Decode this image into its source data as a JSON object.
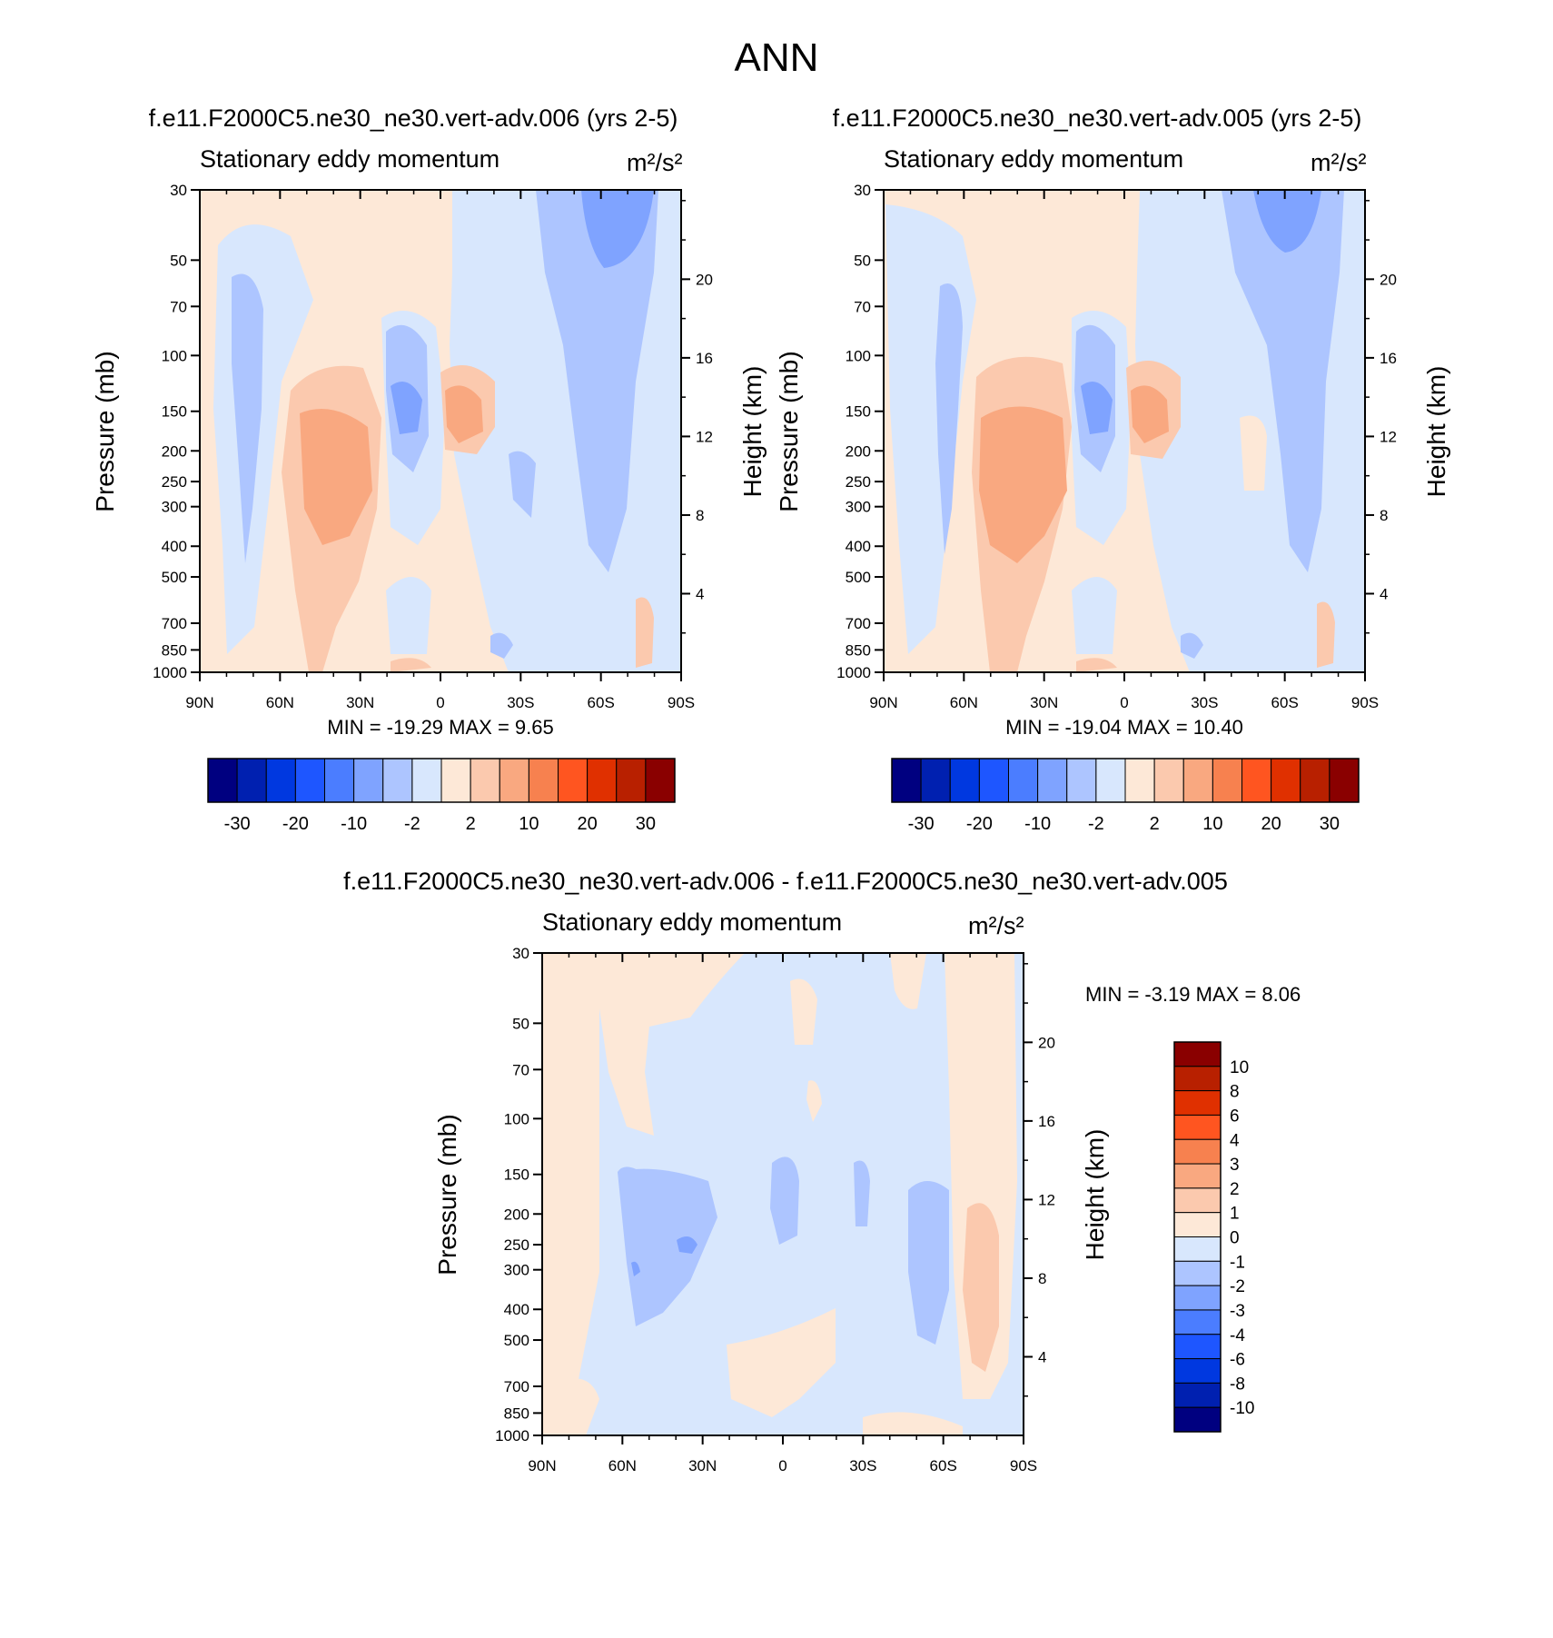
{
  "figure_title": "ANN",
  "colors": {
    "main_scale": [
      "#000080",
      "#0020b0",
      "#0038e0",
      "#1e56ff",
      "#4b7dff",
      "#7fa3ff",
      "#adc5ff",
      "#d8e7fd",
      "#fde8d7",
      "#fbc9ae",
      "#f9a880",
      "#f7814f",
      "#ff5520",
      "#e03000",
      "#b82000",
      "#8a0000"
    ],
    "diff_scale": [
      "#000080",
      "#0020b0",
      "#0038e0",
      "#1e56ff",
      "#4b7dff",
      "#7fa3ff",
      "#adc5ff",
      "#d8e7fd",
      "#fde8d7",
      "#fbc9ae",
      "#f9a880",
      "#f7814f",
      "#ff5520",
      "#e03000",
      "#b82000",
      "#8a0000"
    ]
  },
  "chart_data": [
    {
      "type": "heatmap",
      "title": "f.e11.F2000C5.ne30_ne30.vert-adv.006 (yrs 2-5)",
      "subtitle": "Stationary eddy momentum",
      "units": "m²/s²",
      "ylabel": "Pressure (mb)",
      "ylabel_right": "Height (km)",
      "x_ticks": [
        "90N",
        "60N",
        "30N",
        "0",
        "30S",
        "60S",
        "90S"
      ],
      "y_ticks": [
        "30",
        "50",
        "70",
        "100",
        "150",
        "200",
        "250",
        "300",
        "400",
        "500",
        "700",
        "850",
        "1000"
      ],
      "y_right_ticks": [
        "20",
        "16",
        "12",
        "8",
        "4"
      ],
      "min_max": "MIN = -19.29  MAX =   9.65",
      "colorbar_labels": [
        "-30",
        "-20",
        "-10",
        "-2",
        "2",
        "10",
        "20",
        "30"
      ]
    },
    {
      "type": "heatmap",
      "title": "f.e11.F2000C5.ne30_ne30.vert-adv.005 (yrs 2-5)",
      "subtitle": "Stationary eddy momentum",
      "units": "m²/s²",
      "ylabel": "Pressure (mb)",
      "ylabel_right": "Height (km)",
      "x_ticks": [
        "90N",
        "60N",
        "30N",
        "0",
        "30S",
        "60S",
        "90S"
      ],
      "y_ticks": [
        "30",
        "50",
        "70",
        "100",
        "150",
        "200",
        "250",
        "300",
        "400",
        "500",
        "700",
        "850",
        "1000"
      ],
      "y_right_ticks": [
        "20",
        "16",
        "12",
        "8",
        "4"
      ],
      "min_max": "MIN = -19.04  MAX =  10.40",
      "colorbar_labels": [
        "-30",
        "-20",
        "-10",
        "-2",
        "2",
        "10",
        "20",
        "30"
      ]
    },
    {
      "type": "heatmap",
      "title": "f.e11.F2000C5.ne30_ne30.vert-adv.006 - f.e11.F2000C5.ne30_ne30.vert-adv.005",
      "subtitle": "Stationary eddy momentum",
      "units": "m²/s²",
      "ylabel": "Pressure (mb)",
      "ylabel_right": "Height (km)",
      "x_ticks": [
        "90N",
        "60N",
        "30N",
        "0",
        "30S",
        "60S",
        "90S"
      ],
      "y_ticks": [
        "30",
        "50",
        "70",
        "100",
        "150",
        "200",
        "250",
        "300",
        "400",
        "500",
        "700",
        "850",
        "1000"
      ],
      "y_right_ticks": [
        "20",
        "16",
        "12",
        "8",
        "4"
      ],
      "min_max": "MIN =  -3.19  MAX =   8.06",
      "colorbar_labels": [
        "10",
        "8",
        "6",
        "4",
        "3",
        "2",
        "1",
        "0",
        "-1",
        "-2",
        "-3",
        "-4",
        "-6",
        "-8",
        "-10"
      ]
    }
  ]
}
